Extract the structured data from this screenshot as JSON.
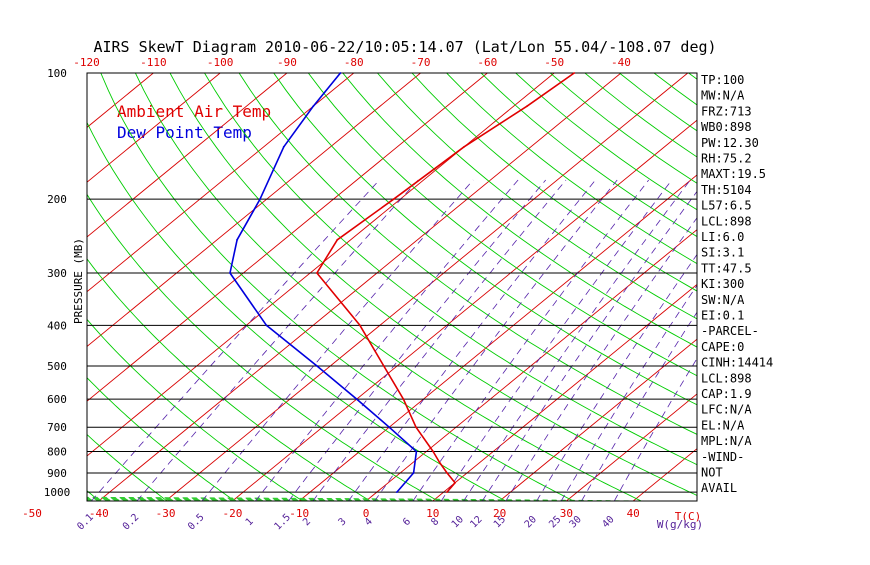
{
  "chart_data": {
    "type": "line",
    "title": "AIRS SkewT Diagram 2010-06-22/10:05:14.07 (Lat/Lon 55.04/-108.07 deg)",
    "ylabel": "PRESSURE (MB)",
    "y_scale": "log",
    "ylim": [
      1050,
      100
    ],
    "pressure_ticks": [
      100,
      200,
      300,
      400,
      500,
      600,
      700,
      800,
      900,
      1000
    ],
    "bottom_temp_ticks": [
      "-50",
      "-40",
      "-30",
      "-20",
      "-10",
      "0",
      "10",
      "20",
      "30",
      "40"
    ],
    "top_temp_ticks": [
      "-120",
      "-110",
      "-100",
      "-90",
      "-80",
      "-70",
      "-60",
      "-50",
      "-40"
    ],
    "mixing_ratio_ticks": [
      "0.1",
      "0.2",
      "0.5",
      "1",
      "1.5",
      "2",
      "3",
      "4",
      "6",
      "8",
      "10",
      "12",
      "15",
      "20",
      "25",
      "30",
      "40"
    ],
    "temp_axis_label": "T(C)",
    "mixing_ratio_axis_label": "W(g/kg)",
    "legend": {
      "placement": "top-left",
      "entries": [
        {
          "label": "Ambient Air Temp",
          "color": "#e00000"
        },
        {
          "label": "Dew Point Temp",
          "color": "#0000dd"
        }
      ]
    },
    "series": [
      {
        "name": "Ambient Air Temp",
        "color": "#e00000",
        "points": [
          {
            "p": 1000,
            "t": 10.5
          },
          {
            "p": 950,
            "t": 10
          },
          {
            "p": 900,
            "t": 7
          },
          {
            "p": 850,
            "t": 4
          },
          {
            "p": 800,
            "t": 1
          },
          {
            "p": 700,
            "t": -6
          },
          {
            "p": 600,
            "t": -13
          },
          {
            "p": 500,
            "t": -22
          },
          {
            "p": 400,
            "t": -33
          },
          {
            "p": 300,
            "t": -49
          },
          {
            "p": 250,
            "t": -52
          },
          {
            "p": 200,
            "t": -51
          },
          {
            "p": 150,
            "t": -50
          },
          {
            "p": 120,
            "t": -48
          },
          {
            "p": 100,
            "t": -47
          }
        ]
      },
      {
        "name": "Dew Point Temp",
        "color": "#0000dd",
        "points": [
          {
            "p": 1000,
            "t": 3
          },
          {
            "p": 900,
            "t": 2
          },
          {
            "p": 800,
            "t": -1.5
          },
          {
            "p": 700,
            "t": -10
          },
          {
            "p": 600,
            "t": -20
          },
          {
            "p": 500,
            "t": -32
          },
          {
            "p": 400,
            "t": -47
          },
          {
            "p": 300,
            "t": -62
          },
          {
            "p": 250,
            "t": -67
          },
          {
            "p": 200,
            "t": -71
          },
          {
            "p": 150,
            "t": -77
          },
          {
            "p": 120,
            "t": -80
          },
          {
            "p": 100,
            "t": -82
          }
        ]
      }
    ],
    "stats": [
      "TP:100",
      "MW:N/A",
      "FRZ:713",
      "WB0:898",
      "PW:12.30",
      "RH:75.2",
      "MAXT:19.5",
      "TH:5104",
      "L57:6.5",
      "LCL:898",
      "LI:6.0",
      "SI:3.1",
      "TT:47.5",
      "KI:300",
      "SW:N/A",
      "EI:0.1",
      "-PARCEL-",
      "CAPE:0",
      "CINH:14414",
      "LCL:898",
      "CAP:1.9",
      "LFC:N/A",
      "EL:N/A",
      "MPL:N/A",
      "-WIND-",
      "NOT",
      "AVAIL"
    ],
    "colors": {
      "isotherm": "#d80000",
      "dry_adiabat": "#00cc00",
      "moist_adiabat": "#33cc33",
      "mixing_ratio": "#5522aa",
      "isobar": "#000000",
      "tick_label": "#dd0000",
      "mixing_label": "#552299"
    }
  }
}
